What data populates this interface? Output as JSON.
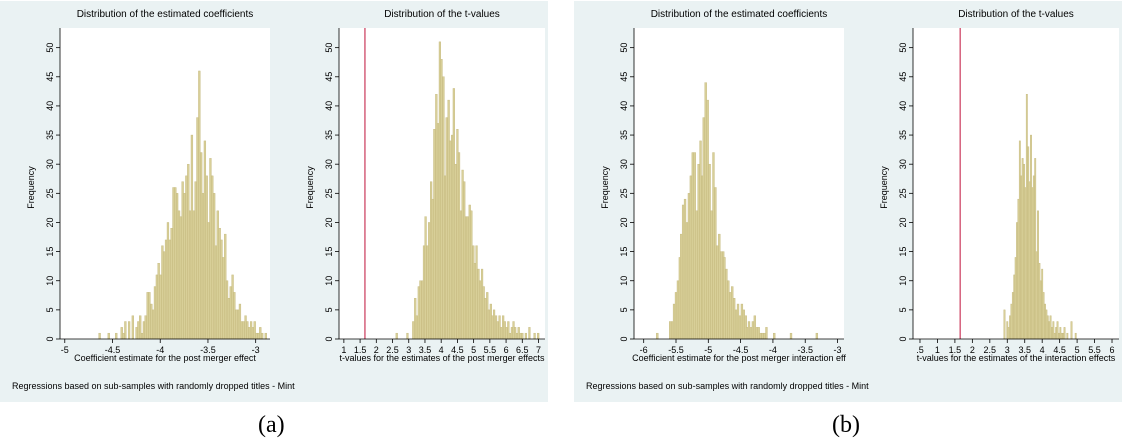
{
  "panels": [
    {
      "caption": "(a)",
      "note": "Regressions based on sub-samples with randomly dropped titles - Mint"
    },
    {
      "caption": "(b)",
      "note": "Regressions based on sub-samples with randomly dropped titles - Mint"
    }
  ],
  "colors": {
    "bar_fill": "#d8cf98",
    "bar_stroke": "#c2b67a",
    "ref_line": "#c0103a",
    "panel_bg": "#eaf2f3"
  },
  "chart_data": [
    {
      "type": "bar",
      "title": "Distribution of the estimated coefficients",
      "xlabel": "Coefficient estimate for the post merger effect",
      "ylabel": "Frequency",
      "xlim": [
        -5.05,
        -2.85
      ],
      "ylim": [
        0,
        52
      ],
      "xticks": [
        -5,
        -4.5,
        -4,
        -3.5,
        -3
      ],
      "xtick_labels": [
        "-5",
        "-4.5",
        "-4",
        "-3.5",
        "-3"
      ],
      "yticks": [
        0,
        5,
        10,
        15,
        20,
        25,
        30,
        35,
        40,
        45,
        50
      ],
      "grid": false,
      "bin_width": 0.0194,
      "x": [
        -4.635,
        -4.539,
        -4.461,
        -4.403,
        -4.384,
        -4.365,
        -4.326,
        -4.287,
        -4.248,
        -4.229,
        -4.21,
        -4.19,
        -4.171,
        -4.152,
        -4.132,
        -4.113,
        -4.093,
        -4.074,
        -4.055,
        -4.035,
        -4.016,
        -3.997,
        -3.977,
        -3.958,
        -3.939,
        -3.919,
        -3.9,
        -3.881,
        -3.861,
        -3.842,
        -3.823,
        -3.803,
        -3.784,
        -3.765,
        -3.745,
        -3.726,
        -3.706,
        -3.687,
        -3.668,
        -3.648,
        -3.629,
        -3.61,
        -3.59,
        -3.571,
        -3.552,
        -3.532,
        -3.513,
        -3.494,
        -3.474,
        -3.455,
        -3.435,
        -3.416,
        -3.397,
        -3.377,
        -3.358,
        -3.339,
        -3.319,
        -3.3,
        -3.281,
        -3.261,
        -3.242,
        -3.223,
        -3.203,
        -3.184,
        -3.165,
        -3.145,
        -3.126,
        -3.106,
        -3.087,
        -3.068,
        -3.048,
        -3.029,
        -3.01,
        -2.99,
        -2.971,
        -2.952,
        -2.932,
        -2.894
      ],
      "values": [
        1,
        1,
        1,
        2,
        1,
        3,
        3,
        4,
        2,
        3,
        4,
        1,
        3,
        4,
        8,
        8,
        6,
        5,
        9,
        11,
        13,
        11,
        16,
        15,
        17,
        20,
        17,
        19,
        26,
        26,
        25,
        22,
        21,
        27,
        25,
        28,
        30,
        22,
        35,
        22,
        27,
        38,
        46,
        32,
        25,
        34,
        28,
        20,
        31,
        28,
        25,
        16,
        22,
        19,
        17,
        14,
        18,
        10,
        7,
        9,
        11,
        8,
        5,
        5,
        6,
        3,
        3,
        4,
        3,
        2,
        3,
        2,
        3,
        1,
        1,
        2,
        1,
        1
      ]
    },
    {
      "type": "bar",
      "title": "Distribution of the t-values",
      "xlabel": "t-values for the estimates of the post merger effects",
      "ylabel": "Frequency",
      "xlim": [
        0.85,
        7.2
      ],
      "ylim": [
        0,
        52
      ],
      "xticks": [
        1,
        1.5,
        2,
        2.5,
        3,
        3.5,
        4,
        4.5,
        5,
        5.5,
        6,
        6.5,
        7
      ],
      "xtick_labels": [
        "1",
        "1.5",
        "2",
        "2.5",
        "3",
        "3.5",
        "4",
        "4.5",
        "5",
        "5.5",
        "6",
        "6.5",
        "7"
      ],
      "yticks": [
        0,
        5,
        10,
        15,
        20,
        25,
        30,
        35,
        40,
        45,
        50
      ],
      "grid": false,
      "reference_line_x": 1.65,
      "bin_width": 0.0545,
      "x": [
        2.63,
        2.96,
        3.14,
        3.2,
        3.25,
        3.31,
        3.36,
        3.42,
        3.47,
        3.52,
        3.58,
        3.63,
        3.69,
        3.74,
        3.79,
        3.85,
        3.9,
        3.96,
        4.01,
        4.07,
        4.12,
        4.17,
        4.23,
        4.28,
        4.34,
        4.39,
        4.44,
        4.5,
        4.55,
        4.61,
        4.66,
        4.71,
        4.77,
        4.82,
        4.88,
        4.93,
        4.99,
        5.04,
        5.09,
        5.15,
        5.2,
        5.26,
        5.31,
        5.36,
        5.42,
        5.47,
        5.53,
        5.58,
        5.63,
        5.69,
        5.74,
        5.8,
        5.85,
        5.91,
        5.96,
        6.01,
        6.07,
        6.12,
        6.18,
        6.23,
        6.28,
        6.34,
        6.39,
        6.45,
        6.5,
        6.61,
        6.72,
        6.88,
        6.99
      ],
      "values": [
        1,
        1,
        3,
        7,
        4,
        9,
        10,
        10,
        16,
        21,
        16,
        20,
        27,
        24,
        36,
        42,
        37,
        51,
        48,
        45,
        28,
        38,
        41,
        34,
        35,
        43,
        30,
        36,
        32,
        22,
        29,
        27,
        21,
        21,
        23,
        22,
        16,
        13,
        16,
        12,
        10,
        12,
        9,
        7,
        8,
        5,
        6,
        4,
        5,
        4,
        3,
        4,
        2,
        4,
        3,
        2,
        3,
        1,
        2,
        3,
        2,
        1,
        2,
        1,
        1,
        1,
        2,
        1,
        1
      ]
    },
    {
      "type": "bar",
      "title": "Distribution of the estimated coefficients",
      "xlabel": "Coefficient estimate for the post merger interaction eff",
      "ylabel": "Frequency",
      "xlim": [
        -6.15,
        -2.9
      ],
      "ylim": [
        0,
        52
      ],
      "xticks": [
        -6,
        -5.5,
        -5,
        -4.5,
        -4,
        -3.5,
        -3
      ],
      "xtick_labels": [
        "-6",
        "-5.5",
        "-5",
        "-4.5",
        "-4",
        "-3.5",
        "-3"
      ],
      "yticks": [
        0,
        5,
        10,
        15,
        20,
        25,
        30,
        35,
        40,
        45,
        50
      ],
      "grid": false,
      "bin_width": 0.0292,
      "x": [
        -5.79,
        -5.59,
        -5.56,
        -5.53,
        -5.5,
        -5.47,
        -5.44,
        -5.42,
        -5.39,
        -5.36,
        -5.33,
        -5.3,
        -5.27,
        -5.24,
        -5.21,
        -5.18,
        -5.15,
        -5.12,
        -5.09,
        -5.07,
        -5.04,
        -5.01,
        -4.98,
        -4.95,
        -4.92,
        -4.89,
        -4.86,
        -4.83,
        -4.8,
        -4.77,
        -4.75,
        -4.72,
        -4.69,
        -4.66,
        -4.63,
        -4.6,
        -4.57,
        -4.54,
        -4.51,
        -4.48,
        -4.45,
        -4.42,
        -4.4,
        -4.37,
        -4.34,
        -4.31,
        -4.28,
        -4.25,
        -4.22,
        -4.19,
        -4.16,
        -4.13,
        -4.1,
        -3.98,
        -3.72,
        -3.32
      ],
      "values": [
        1,
        3,
        3,
        6,
        8,
        10,
        14,
        18,
        23,
        24,
        20,
        25,
        28,
        32,
        32,
        22,
        30,
        34,
        28,
        38,
        44,
        41,
        30,
        22,
        32,
        26,
        16,
        18,
        15,
        15,
        14,
        12,
        10,
        8,
        9,
        7,
        5,
        6,
        4,
        6,
        5,
        4,
        2,
        3,
        2,
        3,
        4,
        2,
        2,
        1,
        1,
        1,
        2,
        1,
        1,
        1
      ]
    },
    {
      "type": "bar",
      "title": "Distribution of the t-values",
      "xlabel": "t-values for the estimates of the interaction effects",
      "ylabel": "Frequency",
      "xlim": [
        0.3,
        6.2
      ],
      "ylim": [
        0,
        52
      ],
      "xticks": [
        0.5,
        1,
        1.5,
        2,
        2.5,
        3,
        3.5,
        4,
        4.5,
        5,
        5.5,
        6
      ],
      "xtick_labels": [
        ".5",
        "1",
        "1.5",
        "2",
        "2.5",
        "3",
        "3.5",
        "4",
        "4.5",
        "5",
        "5.5",
        "6"
      ],
      "yticks": [
        0,
        5,
        10,
        15,
        20,
        25,
        30,
        35,
        40,
        45,
        50
      ],
      "grid": false,
      "reference_line_x": 1.65,
      "bin_width": 0.0404,
      "x": [
        2.92,
        3,
        3.04,
        3.08,
        3.12,
        3.16,
        3.2,
        3.24,
        3.28,
        3.32,
        3.36,
        3.4,
        3.44,
        3.48,
        3.52,
        3.56,
        3.6,
        3.64,
        3.68,
        3.72,
        3.76,
        3.8,
        3.84,
        3.88,
        3.92,
        3.96,
        4,
        4.04,
        4.08,
        4.12,
        4.16,
        4.2,
        4.24,
        4.28,
        4.32,
        4.36,
        4.4,
        4.44,
        4.48,
        4.52,
        4.56,
        4.6,
        4.64,
        4.72,
        4.84,
        4.96
      ],
      "values": [
        5,
        3,
        2,
        4,
        6,
        8,
        11,
        14,
        20,
        24,
        34,
        28,
        31,
        30,
        26,
        42,
        33,
        27,
        35,
        26,
        28,
        31,
        15,
        22,
        13,
        10,
        12,
        8,
        6,
        5,
        4,
        3,
        4,
        2,
        3,
        1,
        2,
        3,
        1,
        2,
        1,
        1,
        2,
        1,
        3,
        1
      ]
    }
  ]
}
